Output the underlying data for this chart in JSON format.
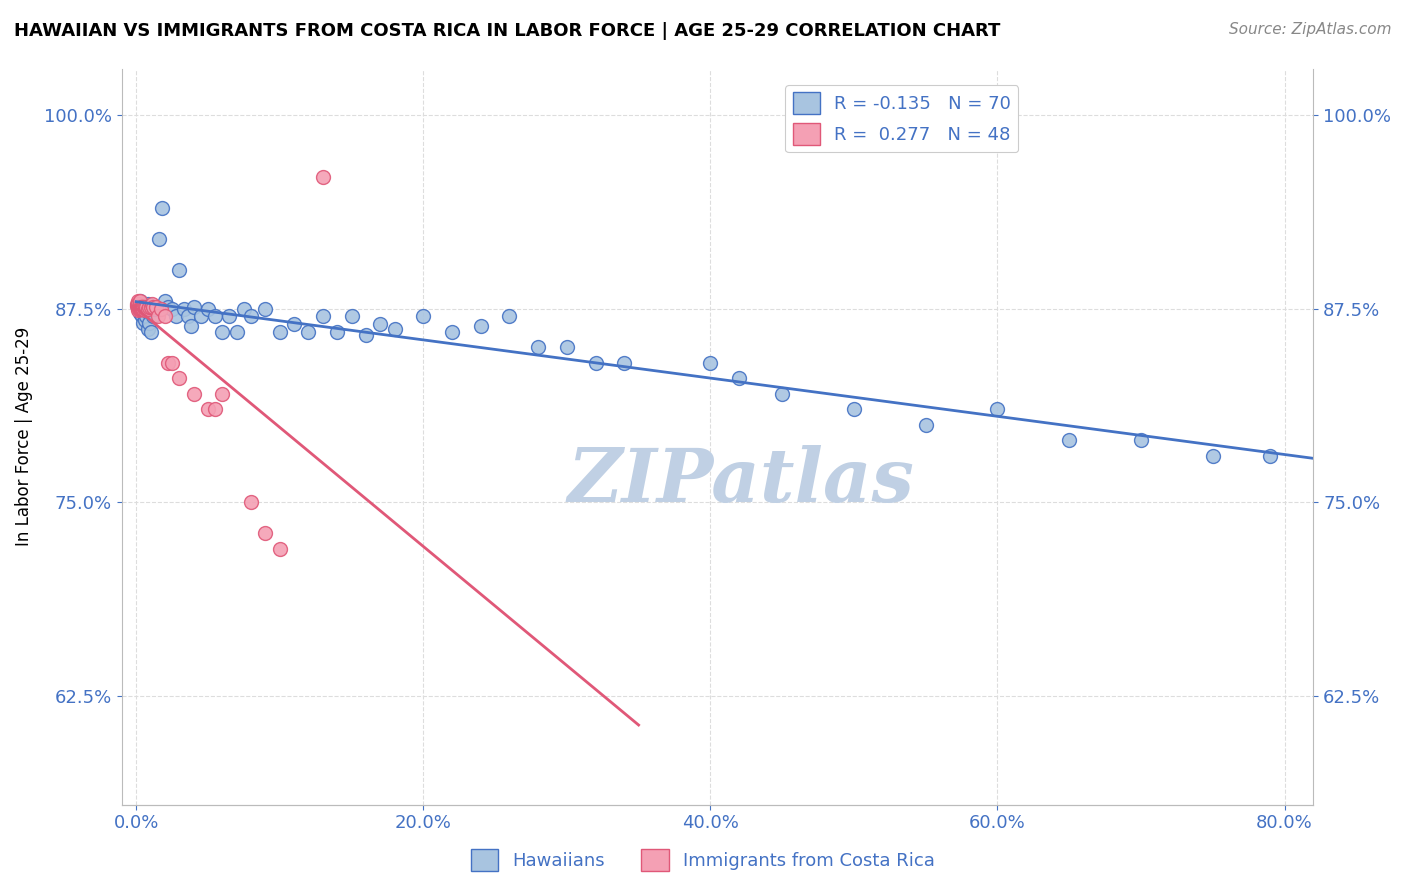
{
  "title": "HAWAIIAN VS IMMIGRANTS FROM COSTA RICA IN LABOR FORCE | AGE 25-29 CORRELATION CHART",
  "source": "Source: ZipAtlas.com",
  "xlabel_ticks": [
    "0.0%",
    "20.0%",
    "40.0%",
    "60.0%",
    "80.0%"
  ],
  "xlabel_vals": [
    0.0,
    0.2,
    0.4,
    0.6,
    0.8
  ],
  "ylabel_ticks": [
    "62.5%",
    "75.0%",
    "87.5%",
    "100.0%"
  ],
  "ylabel_vals": [
    0.625,
    0.75,
    0.875,
    1.0
  ],
  "ylabel_label": "In Labor Force | Age 25-29",
  "legend_label1": "Hawaiians",
  "legend_label2": "Immigrants from Costa Rica",
  "R1": -0.135,
  "N1": 70,
  "R2": 0.277,
  "N2": 48,
  "color_blue": "#a8c4e0",
  "color_pink": "#f4a0b4",
  "color_blue_line": "#4472c4",
  "color_pink_line": "#e05878",
  "color_blue_text": "#4472c4",
  "xlim": [
    -0.01,
    0.82
  ],
  "ylim": [
    0.555,
    1.03
  ],
  "blue_x": [
    0.001,
    0.002,
    0.002,
    0.003,
    0.003,
    0.004,
    0.004,
    0.005,
    0.005,
    0.006,
    0.006,
    0.007,
    0.007,
    0.008,
    0.008,
    0.009,
    0.009,
    0.01,
    0.01,
    0.011,
    0.012,
    0.013,
    0.014,
    0.016,
    0.018,
    0.02,
    0.022,
    0.025,
    0.028,
    0.03,
    0.033,
    0.036,
    0.038,
    0.04,
    0.045,
    0.05,
    0.055,
    0.06,
    0.065,
    0.07,
    0.075,
    0.08,
    0.09,
    0.1,
    0.11,
    0.12,
    0.13,
    0.14,
    0.15,
    0.16,
    0.17,
    0.18,
    0.2,
    0.22,
    0.24,
    0.26,
    0.28,
    0.3,
    0.32,
    0.34,
    0.4,
    0.42,
    0.45,
    0.5,
    0.55,
    0.6,
    0.65,
    0.7,
    0.75,
    0.79
  ],
  "blue_y": [
    0.878,
    0.876,
    0.874,
    0.88,
    0.872,
    0.875,
    0.87,
    0.878,
    0.866,
    0.874,
    0.868,
    0.876,
    0.87,
    0.878,
    0.862,
    0.872,
    0.866,
    0.874,
    0.86,
    0.876,
    0.87,
    0.875,
    0.876,
    0.92,
    0.94,
    0.88,
    0.876,
    0.875,
    0.87,
    0.9,
    0.875,
    0.87,
    0.864,
    0.876,
    0.87,
    0.875,
    0.87,
    0.86,
    0.87,
    0.86,
    0.875,
    0.87,
    0.875,
    0.86,
    0.865,
    0.86,
    0.87,
    0.86,
    0.87,
    0.858,
    0.865,
    0.862,
    0.87,
    0.86,
    0.864,
    0.87,
    0.85,
    0.85,
    0.84,
    0.84,
    0.84,
    0.83,
    0.82,
    0.81,
    0.8,
    0.81,
    0.79,
    0.79,
    0.78,
    0.78
  ],
  "pink_x": [
    0.0005,
    0.0008,
    0.001,
    0.001,
    0.0012,
    0.0013,
    0.0014,
    0.0015,
    0.0016,
    0.0018,
    0.002,
    0.0022,
    0.0024,
    0.0026,
    0.0028,
    0.003,
    0.0032,
    0.0035,
    0.0038,
    0.004,
    0.0043,
    0.0045,
    0.005,
    0.005,
    0.006,
    0.006,
    0.007,
    0.007,
    0.008,
    0.009,
    0.01,
    0.011,
    0.012,
    0.014,
    0.015,
    0.017,
    0.02,
    0.022,
    0.025,
    0.03,
    0.04,
    0.05,
    0.055,
    0.06,
    0.08,
    0.09,
    0.1,
    0.13
  ],
  "pink_y": [
    0.877,
    0.878,
    0.876,
    0.88,
    0.876,
    0.878,
    0.876,
    0.878,
    0.874,
    0.876,
    0.877,
    0.875,
    0.876,
    0.875,
    0.876,
    0.88,
    0.876,
    0.875,
    0.876,
    0.876,
    0.875,
    0.875,
    0.876,
    0.875,
    0.874,
    0.876,
    0.875,
    0.876,
    0.875,
    0.876,
    0.876,
    0.878,
    0.876,
    0.876,
    0.87,
    0.875,
    0.87,
    0.84,
    0.84,
    0.83,
    0.82,
    0.81,
    0.81,
    0.82,
    0.75,
    0.73,
    0.72,
    0.96
  ],
  "grid_color": "#dddddd",
  "watermark": "ZIPatlas",
  "watermark_color": "#c0d0e4"
}
